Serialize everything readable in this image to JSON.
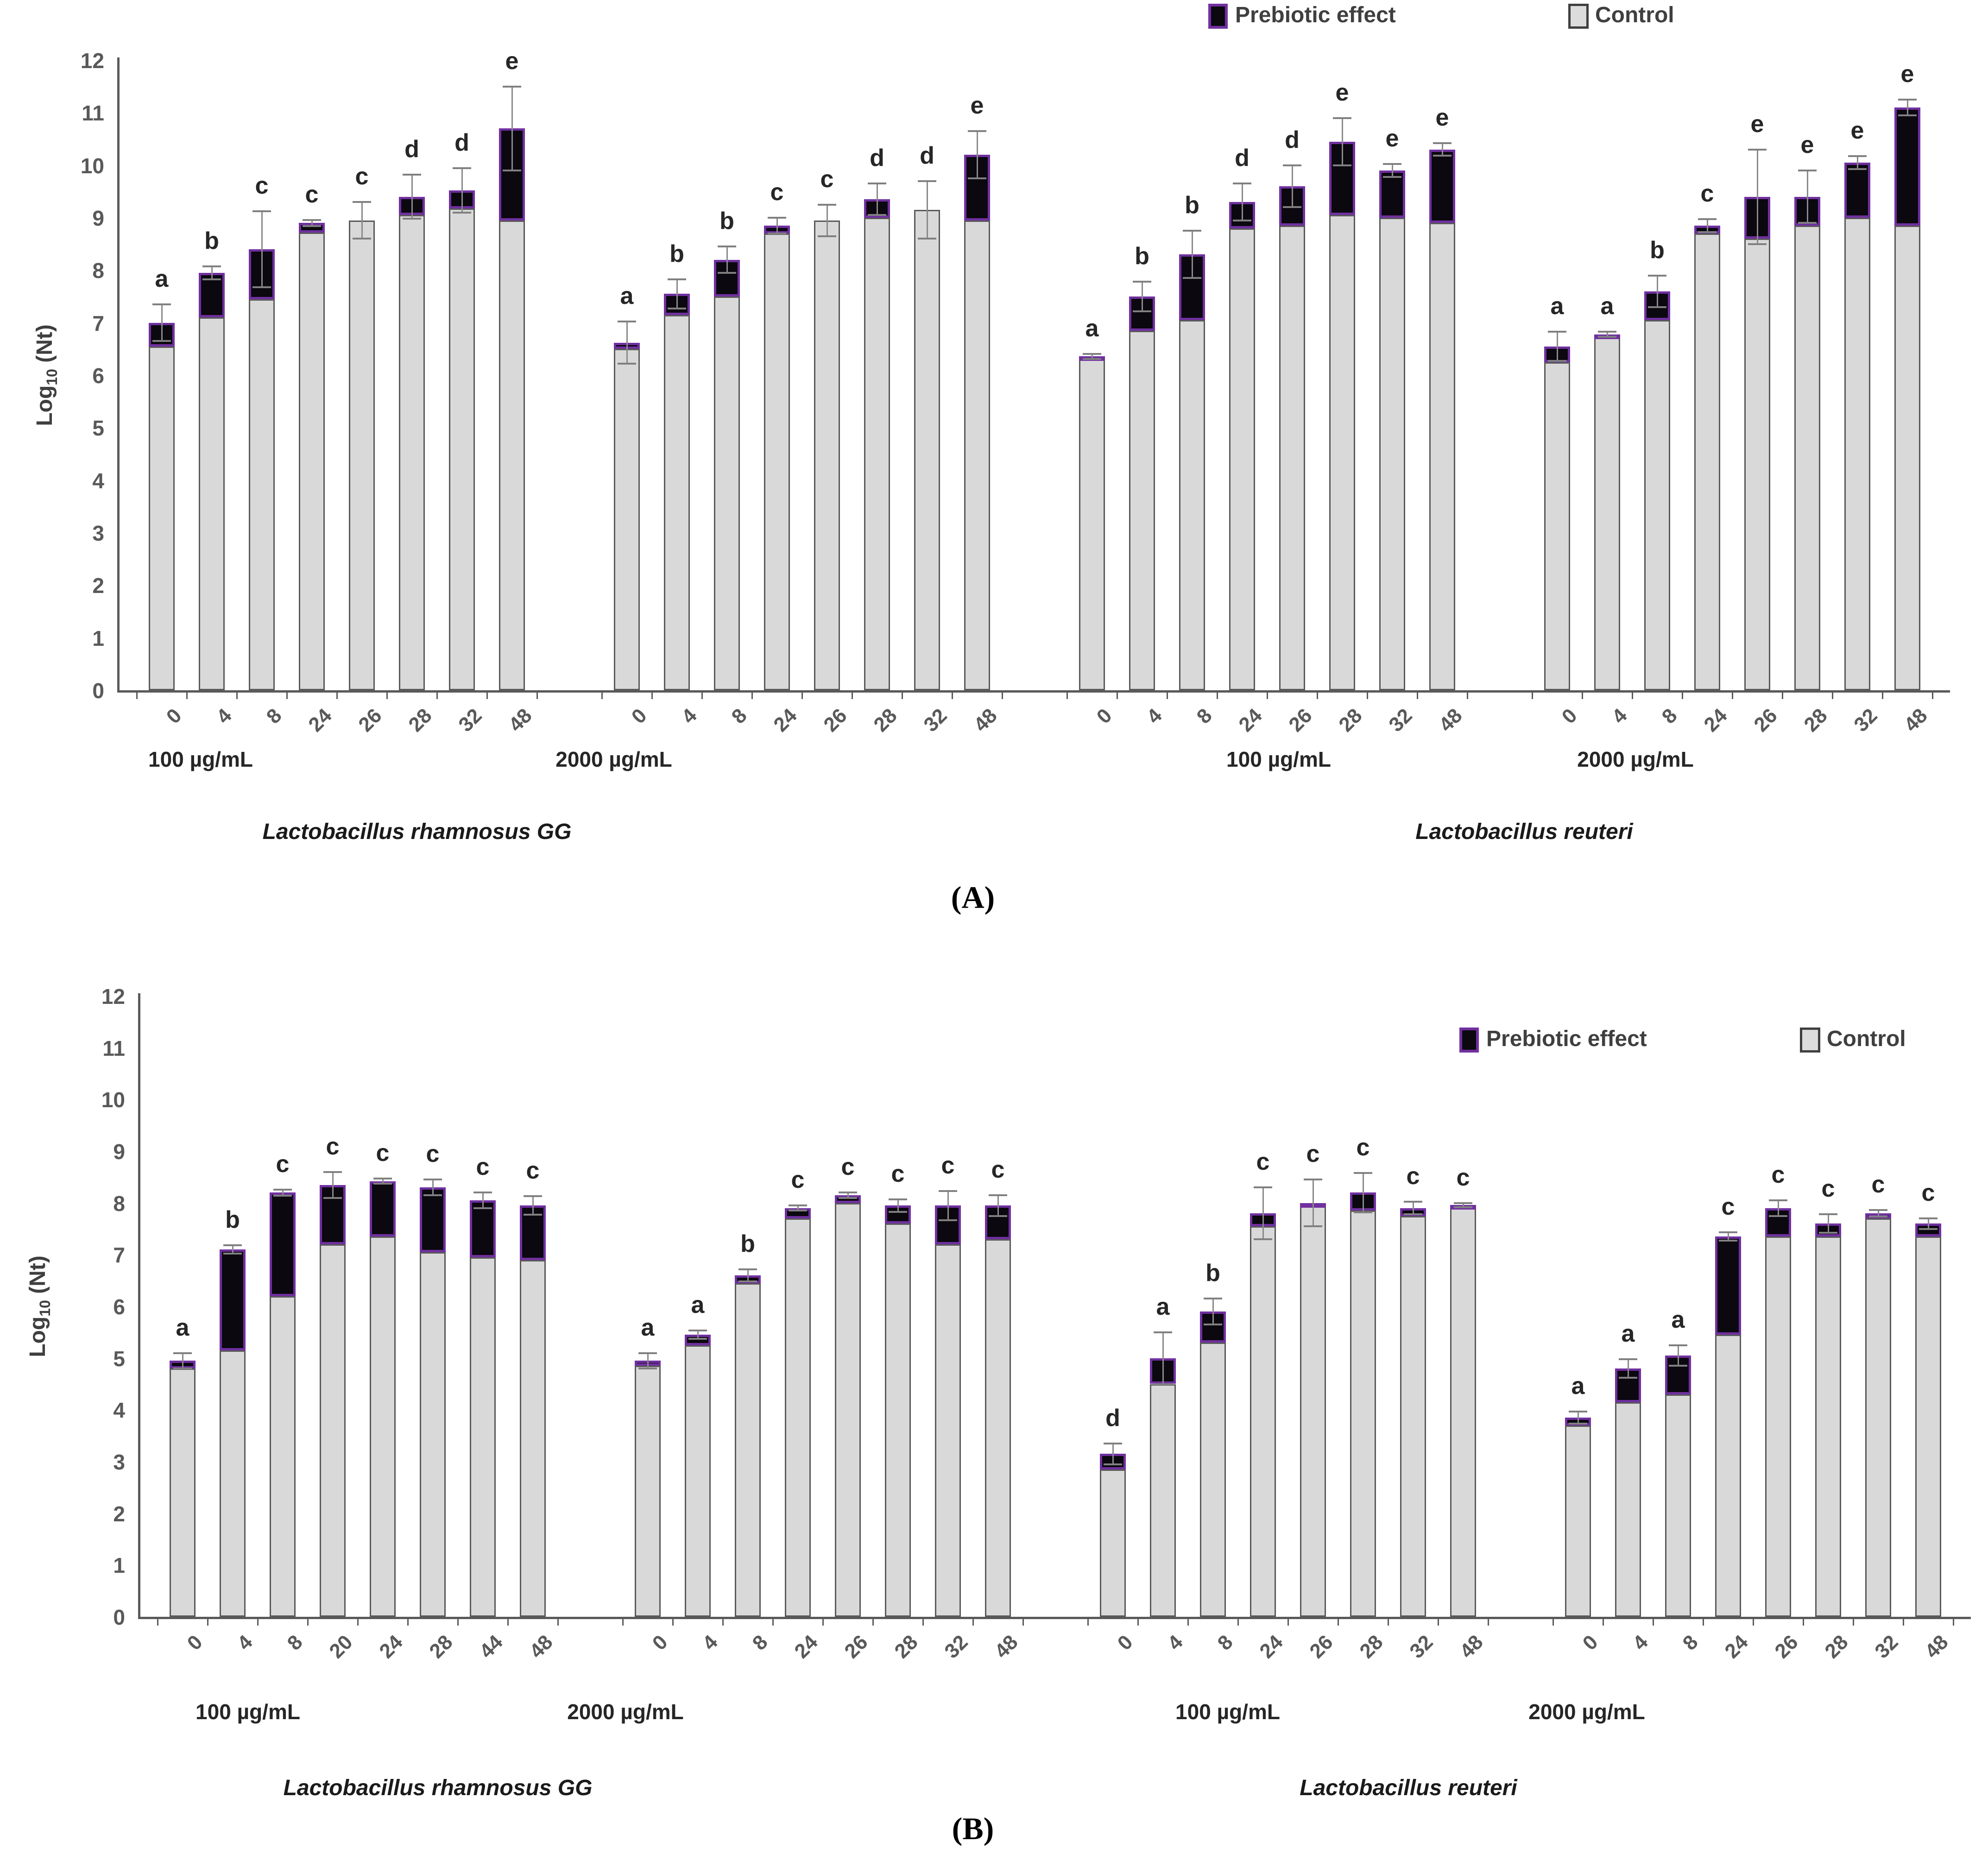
{
  "chart_data": [
    {
      "type": "stacked-bar",
      "panel_label": "(A)",
      "ylabel": "Log10 (Nt)",
      "ylabel_parts": {
        "main": "Log",
        "sub": "10",
        "rest": " (Nt)"
      },
      "ylim": [
        0,
        12
      ],
      "yticks": [
        0,
        1,
        2,
        3,
        4,
        5,
        6,
        7,
        8,
        9,
        10,
        11,
        12
      ],
      "legend": {
        "prebiotic_label": "Prebiotic effect",
        "control_label": "Control",
        "prebiotic_color": "#0b0810",
        "prebiotic_border": "#7030a0",
        "control_color": "#d9d9d9",
        "control_border": "#595959"
      },
      "series_names": [
        "Control",
        "Prebiotic effect"
      ],
      "species": [
        {
          "name": "Lactobacillus rhamnosus GG",
          "concentrations": [
            {
              "label": "100 µg/mL",
              "bars": [
                {
                  "time": "0",
                  "control": 6.55,
                  "total": 7.0,
                  "err": 0.35,
                  "letter": "a"
                },
                {
                  "time": "4",
                  "control": 7.1,
                  "total": 7.95,
                  "err": 0.12,
                  "letter": "b"
                },
                {
                  "time": "8",
                  "control": 7.45,
                  "total": 8.4,
                  "err": 0.72,
                  "letter": "c"
                },
                {
                  "time": "24",
                  "control": 8.72,
                  "total": 8.9,
                  "err": 0.06,
                  "letter": "c"
                },
                {
                  "time": "26",
                  "control": 8.95,
                  "total": 8.95,
                  "err": 0.35,
                  "letter": "c"
                },
                {
                  "time": "28",
                  "control": 9.05,
                  "total": 9.4,
                  "err": 0.42,
                  "letter": "d"
                },
                {
                  "time": "32",
                  "control": 9.18,
                  "total": 9.52,
                  "err": 0.42,
                  "letter": "d"
                },
                {
                  "time": "48",
                  "control": 8.95,
                  "total": 10.7,
                  "err": 0.8,
                  "letter": "e"
                }
              ]
            },
            {
              "label": "2000 µg/mL",
              "bars": [
                {
                  "time": "0",
                  "control": 6.5,
                  "total": 6.62,
                  "err": 0.4,
                  "letter": "a"
                },
                {
                  "time": "4",
                  "control": 7.15,
                  "total": 7.55,
                  "err": 0.28,
                  "letter": "b"
                },
                {
                  "time": "8",
                  "control": 7.5,
                  "total": 8.2,
                  "err": 0.25,
                  "letter": "b"
                },
                {
                  "time": "24",
                  "control": 8.7,
                  "total": 8.85,
                  "err": 0.15,
                  "letter": "c"
                },
                {
                  "time": "26",
                  "control": 8.95,
                  "total": 8.95,
                  "err": 0.3,
                  "letter": "c"
                },
                {
                  "time": "28",
                  "control": 9.0,
                  "total": 9.35,
                  "err": 0.3,
                  "letter": "d"
                },
                {
                  "time": "32",
                  "control": 9.15,
                  "total": 9.15,
                  "err": 0.55,
                  "letter": "d"
                },
                {
                  "time": "48",
                  "control": 8.95,
                  "total": 10.2,
                  "err": 0.45,
                  "letter": "e"
                }
              ]
            }
          ]
        },
        {
          "name": "Lactobacillus reuteri",
          "concentrations": [
            {
              "label": "100 µg/mL",
              "bars": [
                {
                  "time": "0",
                  "control": 6.3,
                  "total": 6.36,
                  "err": 0.05,
                  "letter": "a"
                },
                {
                  "time": "4",
                  "control": 6.85,
                  "total": 7.5,
                  "err": 0.28,
                  "letter": "b"
                },
                {
                  "time": "8",
                  "control": 7.05,
                  "total": 8.3,
                  "err": 0.45,
                  "letter": "b"
                },
                {
                  "time": "24",
                  "control": 8.8,
                  "total": 9.3,
                  "err": 0.35,
                  "letter": "d"
                },
                {
                  "time": "26",
                  "control": 8.85,
                  "total": 9.6,
                  "err": 0.4,
                  "letter": "d"
                },
                {
                  "time": "28",
                  "control": 9.05,
                  "total": 10.45,
                  "err": 0.45,
                  "letter": "e"
                },
                {
                  "time": "32",
                  "control": 9.0,
                  "total": 9.9,
                  "err": 0.12,
                  "letter": "e"
                },
                {
                  "time": "48",
                  "control": 8.9,
                  "total": 10.3,
                  "err": 0.12,
                  "letter": "e"
                }
              ]
            },
            {
              "label": "2000 µg/mL",
              "bars": [
                {
                  "time": "0",
                  "control": 6.25,
                  "total": 6.55,
                  "err": 0.28,
                  "letter": "a"
                },
                {
                  "time": "4",
                  "control": 6.75,
                  "total": 6.78,
                  "err": 0.05,
                  "letter": "a"
                },
                {
                  "time": "8",
                  "control": 7.05,
                  "total": 7.6,
                  "err": 0.3,
                  "letter": "b"
                },
                {
                  "time": "24",
                  "control": 8.7,
                  "total": 8.85,
                  "err": 0.12,
                  "letter": "c"
                },
                {
                  "time": "26",
                  "control": 8.6,
                  "total": 9.4,
                  "err": 0.9,
                  "letter": "e"
                },
                {
                  "time": "28",
                  "control": 8.85,
                  "total": 9.4,
                  "err": 0.5,
                  "letter": "e"
                },
                {
                  "time": "32",
                  "control": 9.0,
                  "total": 10.05,
                  "err": 0.12,
                  "letter": "e"
                },
                {
                  "time": "48",
                  "control": 8.85,
                  "total": 11.1,
                  "err": 0.15,
                  "letter": "e"
                }
              ]
            }
          ]
        }
      ]
    },
    {
      "type": "stacked-bar",
      "panel_label": "(B)",
      "ylabel": "Log10 (Nt)",
      "ylabel_parts": {
        "main": "Log",
        "sub": "10",
        "rest": " (Nt)"
      },
      "ylim": [
        0,
        12
      ],
      "yticks": [
        0,
        1,
        2,
        3,
        4,
        5,
        6,
        7,
        8,
        9,
        10,
        11,
        12
      ],
      "legend": {
        "prebiotic_label": "Prebiotic effect",
        "control_label": "Control",
        "prebiotic_color": "#0b0810",
        "prebiotic_border": "#7030a0",
        "control_color": "#d9d9d9",
        "control_border": "#595959"
      },
      "series_names": [
        "Control",
        "Prebiotic effect"
      ],
      "species": [
        {
          "name": "Lactobacillus rhamnosus GG",
          "concentrations": [
            {
              "label": "100 µg/mL",
              "bars": [
                {
                  "time": "0",
                  "control": 4.8,
                  "total": 4.95,
                  "err": 0.15,
                  "letter": "a"
                },
                {
                  "time": "4",
                  "control": 5.15,
                  "total": 7.1,
                  "err": 0.08,
                  "letter": "b"
                },
                {
                  "time": "8",
                  "control": 6.2,
                  "total": 8.2,
                  "err": 0.06,
                  "letter": "c"
                },
                {
                  "time": "20",
                  "control": 7.2,
                  "total": 8.35,
                  "err": 0.25,
                  "letter": "c"
                },
                {
                  "time": "24",
                  "control": 7.35,
                  "total": 8.42,
                  "err": 0.05,
                  "letter": "c"
                },
                {
                  "time": "28",
                  "control": 7.05,
                  "total": 8.3,
                  "err": 0.15,
                  "letter": "c"
                },
                {
                  "time": "44",
                  "control": 6.95,
                  "total": 8.05,
                  "err": 0.15,
                  "letter": "c"
                },
                {
                  "time": "48",
                  "control": 6.9,
                  "total": 7.95,
                  "err": 0.18,
                  "letter": "c"
                }
              ]
            },
            {
              "label": "2000 µg/mL",
              "bars": [
                {
                  "time": "0",
                  "control": 4.85,
                  "total": 4.95,
                  "err": 0.15,
                  "letter": "a"
                },
                {
                  "time": "4",
                  "control": 5.25,
                  "total": 5.45,
                  "err": 0.08,
                  "letter": "a"
                },
                {
                  "time": "8",
                  "control": 6.45,
                  "total": 6.6,
                  "err": 0.12,
                  "letter": "b"
                },
                {
                  "time": "24",
                  "control": 7.7,
                  "total": 7.9,
                  "err": 0.05,
                  "letter": "c"
                },
                {
                  "time": "26",
                  "control": 8.0,
                  "total": 8.15,
                  "err": 0.05,
                  "letter": "c"
                },
                {
                  "time": "28",
                  "control": 7.6,
                  "total": 7.95,
                  "err": 0.12,
                  "letter": "c"
                },
                {
                  "time": "32",
                  "control": 7.2,
                  "total": 7.95,
                  "err": 0.28,
                  "letter": "c"
                },
                {
                  "time": "48",
                  "control": 7.3,
                  "total": 7.95,
                  "err": 0.2,
                  "letter": "c"
                }
              ]
            }
          ]
        },
        {
          "name": "Lactobacillus reuteri",
          "concentrations": [
            {
              "label": "100 µg/mL",
              "bars": [
                {
                  "time": "0",
                  "control": 2.85,
                  "total": 3.15,
                  "err": 0.2,
                  "letter": "d"
                },
                {
                  "time": "4",
                  "control": 4.5,
                  "total": 5.0,
                  "err": 0.5,
                  "letter": "a"
                },
                {
                  "time": "8",
                  "control": 5.3,
                  "total": 5.9,
                  "err": 0.25,
                  "letter": "b"
                },
                {
                  "time": "24",
                  "control": 7.55,
                  "total": 7.8,
                  "err": 0.5,
                  "letter": "c"
                },
                {
                  "time": "26",
                  "control": 7.95,
                  "total": 8.0,
                  "err": 0.45,
                  "letter": "c"
                },
                {
                  "time": "28",
                  "control": 7.85,
                  "total": 8.2,
                  "err": 0.38,
                  "letter": "c"
                },
                {
                  "time": "32",
                  "control": 7.75,
                  "total": 7.9,
                  "err": 0.12,
                  "letter": "c"
                },
                {
                  "time": "48",
                  "control": 7.9,
                  "total": 7.96,
                  "err": 0.04,
                  "letter": "c"
                }
              ]
            },
            {
              "label": "2000 µg/mL",
              "bars": [
                {
                  "time": "0",
                  "control": 3.7,
                  "total": 3.85,
                  "err": 0.12,
                  "letter": "a"
                },
                {
                  "time": "4",
                  "control": 4.15,
                  "total": 4.8,
                  "err": 0.18,
                  "letter": "a"
                },
                {
                  "time": "8",
                  "control": 4.3,
                  "total": 5.05,
                  "err": 0.2,
                  "letter": "a"
                },
                {
                  "time": "24",
                  "control": 5.45,
                  "total": 7.35,
                  "err": 0.08,
                  "letter": "c"
                },
                {
                  "time": "26",
                  "control": 7.35,
                  "total": 7.9,
                  "err": 0.15,
                  "letter": "c"
                },
                {
                  "time": "28",
                  "control": 7.35,
                  "total": 7.6,
                  "err": 0.18,
                  "letter": "c"
                },
                {
                  "time": "32",
                  "control": 7.7,
                  "total": 7.8,
                  "err": 0.06,
                  "letter": "c"
                },
                {
                  "time": "48",
                  "control": 7.35,
                  "total": 7.6,
                  "err": 0.1,
                  "letter": "c"
                }
              ]
            }
          ]
        }
      ]
    }
  ]
}
